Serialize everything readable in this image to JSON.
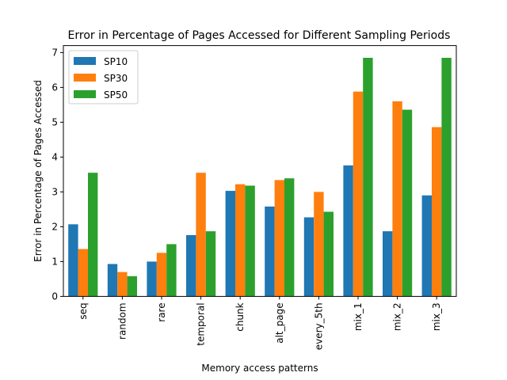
{
  "chart_data": {
    "type": "bar",
    "title": "Error in Percentage of Pages Accessed for Different Sampling Periods",
    "xlabel": "Memory access patterns",
    "ylabel": "Error in Percentage of Pages Accessed",
    "categories": [
      "seq",
      "random",
      "rare",
      "temporal",
      "chunk",
      "alt_page",
      "every_5th",
      "mix_1",
      "mix_2",
      "mix_3"
    ],
    "series": [
      {
        "name": "SP10",
        "color": "#1f77b4",
        "values": [
          2.07,
          0.93,
          1.0,
          1.76,
          3.03,
          2.58,
          2.27,
          3.76,
          1.87,
          2.9
        ]
      },
      {
        "name": "SP30",
        "color": "#ff7f0e",
        "values": [
          1.36,
          0.7,
          1.25,
          3.55,
          3.22,
          3.34,
          3.0,
          5.88,
          5.6,
          4.86
        ]
      },
      {
        "name": "SP50",
        "color": "#2ca02c",
        "values": [
          3.55,
          0.58,
          1.5,
          1.87,
          3.18,
          3.39,
          2.43,
          6.85,
          5.36,
          6.85
        ]
      }
    ],
    "ylim": [
      0,
      7.2
    ],
    "yticks": [
      0,
      1,
      2,
      3,
      4,
      5,
      6,
      7
    ],
    "grid": false,
    "legend_position": "top-left"
  }
}
